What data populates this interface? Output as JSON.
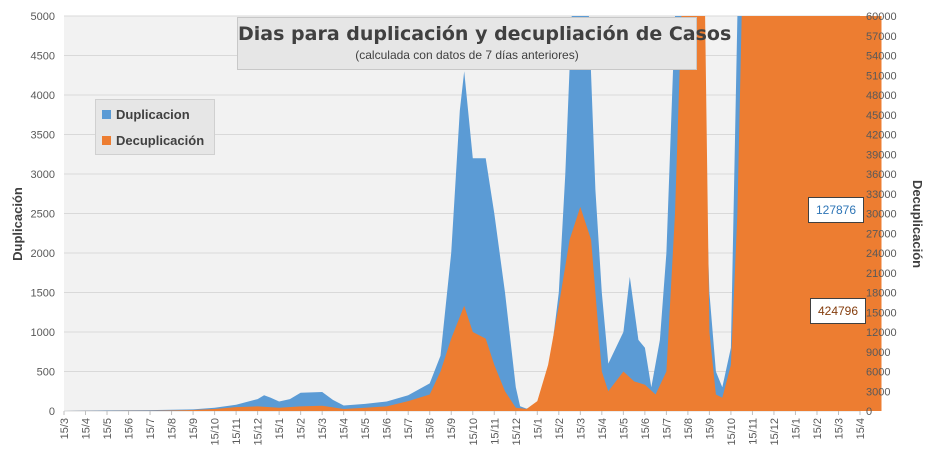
{
  "chart_data": {
    "type": "area",
    "title": "Dias para duplicación y decupliación de Casos",
    "subtitle": "(calculada con datos de 7 días anteriores)",
    "ylabel": "Duplicación",
    "y2label": "Decuplicación",
    "ylim": [
      0,
      5000
    ],
    "y2lim": [
      0,
      60000
    ],
    "yticks": [
      "0",
      "500",
      "1000",
      "1500",
      "2000",
      "2500",
      "3000",
      "3500",
      "4000",
      "4500",
      "5000"
    ],
    "y2ticks": [
      "0",
      "3000",
      "6000",
      "9000",
      "12000",
      "15000",
      "18000",
      "21000",
      "24000",
      "27000",
      "30000",
      "33000",
      "36000",
      "39000",
      "42000",
      "45000",
      "48000",
      "51000",
      "54000",
      "57000",
      "60000"
    ],
    "x_ticks": [
      "15/3",
      "15/4",
      "15/5",
      "15/6",
      "15/7",
      "15/8",
      "15/9",
      "15/10",
      "15/11",
      "15/12",
      "15/1",
      "15/2",
      "15/3",
      "15/4",
      "15/5",
      "15/6",
      "15/7",
      "15/8",
      "15/9",
      "15/10",
      "15/11",
      "15/12",
      "15/1",
      "15/2",
      "15/3",
      "15/4",
      "15/5",
      "15/6",
      "15/7",
      "15/8",
      "15/9",
      "15/10",
      "15/11",
      "15/12",
      "15/1",
      "15/2",
      "15/3",
      "15/4"
    ],
    "grid": true,
    "legend_position": "top-left",
    "series": [
      {
        "name": "Duplicacion",
        "axis": "left",
        "color": "#5b9bd5",
        "points": [
          [
            0,
            0
          ],
          [
            1,
            5
          ],
          [
            2,
            8
          ],
          [
            3,
            10
          ],
          [
            4,
            12
          ],
          [
            5,
            15
          ],
          [
            6,
            20
          ],
          [
            7,
            40
          ],
          [
            8,
            80
          ],
          [
            9,
            150
          ],
          [
            9.3,
            200
          ],
          [
            9.6,
            170
          ],
          [
            10,
            120
          ],
          [
            10.5,
            150
          ],
          [
            11,
            230
          ],
          [
            12,
            240
          ],
          [
            12.5,
            140
          ],
          [
            13,
            70
          ],
          [
            14,
            90
          ],
          [
            15,
            120
          ],
          [
            16,
            200
          ],
          [
            17,
            350
          ],
          [
            17.5,
            700
          ],
          [
            18,
            2000
          ],
          [
            18.4,
            3800
          ],
          [
            18.6,
            4300
          ],
          [
            19,
            3200
          ],
          [
            19.6,
            3200
          ],
          [
            20,
            2500
          ],
          [
            20.5,
            1500
          ],
          [
            21,
            300
          ],
          [
            21.2,
            60
          ],
          [
            21.5,
            30
          ],
          [
            22,
            60
          ],
          [
            22.5,
            400
          ],
          [
            23,
            1500
          ],
          [
            23.3,
            3000
          ],
          [
            23.6,
            5000
          ],
          [
            24.4,
            5000
          ],
          [
            24.7,
            2800
          ],
          [
            25,
            1500
          ],
          [
            25.3,
            600
          ],
          [
            26,
            1000
          ],
          [
            26.3,
            1700
          ],
          [
            26.7,
            900
          ],
          [
            27,
            800
          ],
          [
            27.3,
            300
          ],
          [
            27.7,
            900
          ],
          [
            28,
            2000
          ],
          [
            28.4,
            5000
          ],
          [
            29.6,
            5000
          ],
          [
            30,
            1500
          ],
          [
            30.3,
            500
          ],
          [
            30.6,
            300
          ],
          [
            31,
            800
          ],
          [
            31.3,
            5000
          ],
          [
            38,
            5000
          ]
        ]
      },
      {
        "name": "Decuplicación",
        "axis": "right",
        "color": "#ed7d31",
        "points": [
          [
            0,
            0
          ],
          [
            1,
            10
          ],
          [
            2,
            20
          ],
          [
            3,
            30
          ],
          [
            4,
            50
          ],
          [
            5,
            80
          ],
          [
            6,
            150
          ],
          [
            7,
            300
          ],
          [
            8,
            600
          ],
          [
            9,
            700
          ],
          [
            10,
            500
          ],
          [
            11,
            700
          ],
          [
            12,
            800
          ],
          [
            13,
            300
          ],
          [
            14,
            500
          ],
          [
            15,
            700
          ],
          [
            16,
            1500
          ],
          [
            17,
            2500
          ],
          [
            17.5,
            6000
          ],
          [
            18,
            11000
          ],
          [
            18.6,
            16000
          ],
          [
            19,
            12000
          ],
          [
            19.6,
            11000
          ],
          [
            20,
            7000
          ],
          [
            20.5,
            3000
          ],
          [
            21,
            500
          ],
          [
            21.5,
            300
          ],
          [
            22,
            1500
          ],
          [
            22.5,
            7000
          ],
          [
            23,
            16000
          ],
          [
            23.5,
            26000
          ],
          [
            24,
            31000
          ],
          [
            24.5,
            26000
          ],
          [
            25,
            6000
          ],
          [
            25.3,
            3000
          ],
          [
            26,
            6000
          ],
          [
            26.5,
            4500
          ],
          [
            27,
            4000
          ],
          [
            27.5,
            2500
          ],
          [
            28,
            6000
          ],
          [
            28.4,
            30000
          ],
          [
            28.7,
            60000
          ],
          [
            29.8,
            60000
          ],
          [
            30,
            12000
          ],
          [
            30.3,
            2500
          ],
          [
            30.6,
            2000
          ],
          [
            31,
            7000
          ],
          [
            31.3,
            30000
          ],
          [
            31.5,
            60000
          ],
          [
            38,
            60000
          ]
        ]
      }
    ],
    "annotations": [
      {
        "text": "127876",
        "color": "#2e75b6"
      },
      {
        "text": "424796",
        "color": "#843c0c"
      }
    ]
  }
}
